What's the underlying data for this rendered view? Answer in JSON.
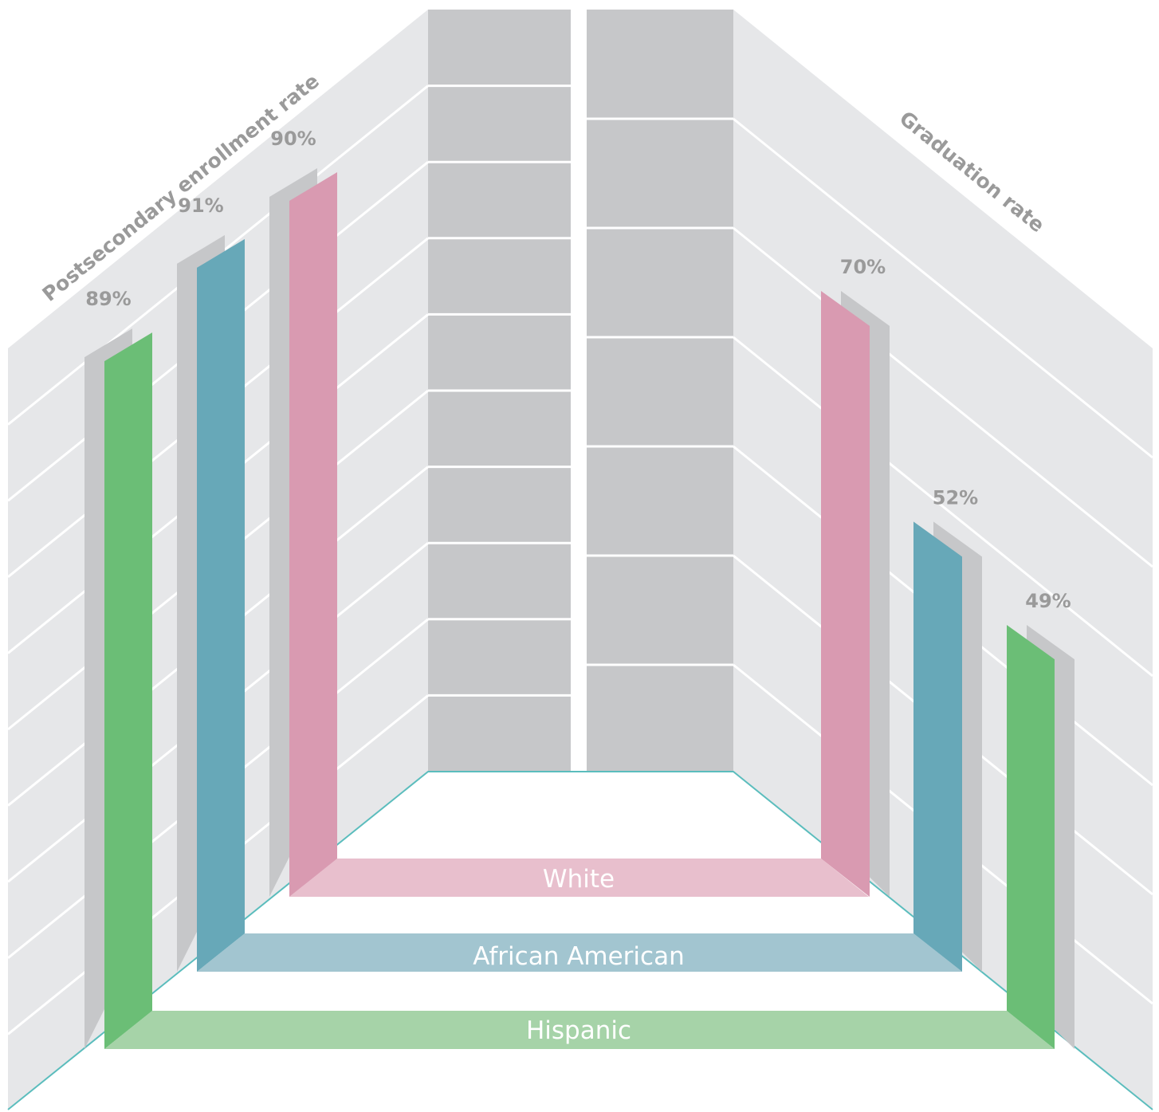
{
  "chart_data": {
    "type": "bar",
    "categories": [
      "Hispanic",
      "African American",
      "White"
    ],
    "series": [
      {
        "name": "Postsecondary enrollment rate",
        "values": [
          89,
          91,
          90
        ]
      },
      {
        "name": "Graduation rate",
        "values": [
          49,
          52,
          70
        ]
      }
    ],
    "value_labels": {
      "enrollment": [
        "89%",
        "91%",
        "90%"
      ],
      "graduation": [
        "49%",
        "52%",
        "70%"
      ]
    },
    "ylim": [
      0,
      100
    ],
    "colors": {
      "Hispanic": "#6bbe76",
      "African American": "#67a8b8",
      "White": "#d99ab1"
    },
    "band_colors": {
      "Hispanic": "#a6d3a8",
      "African American": "#a2c5d0",
      "White": "#e8bfcd"
    },
    "wall_color": "#e6e7e9",
    "back_wall_color": "#c6c7c9",
    "shadow_color": "#c6c7c9",
    "floor_line_color": "#5bbdbd"
  }
}
